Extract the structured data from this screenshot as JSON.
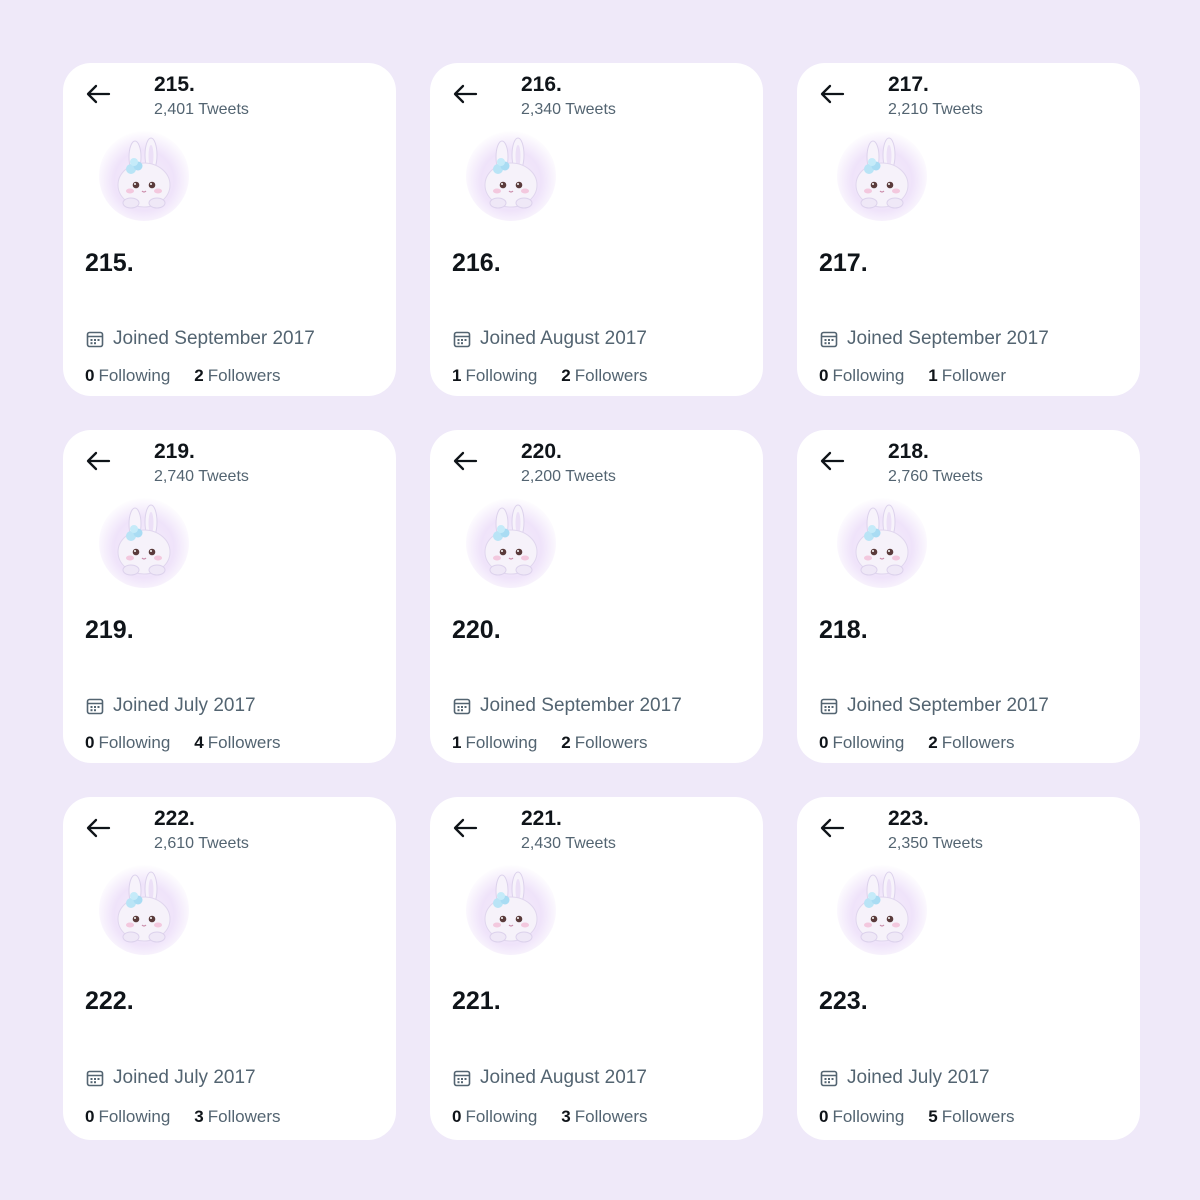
{
  "cards": [
    {
      "name": "215.",
      "tweets": "2,401 Tweets",
      "display_name": "215.",
      "joined": "Joined September 2017",
      "following_count": "0",
      "following_label": "Following",
      "followers_count": "2",
      "followers_label": "Followers"
    },
    {
      "name": "216.",
      "tweets": "2,340 Tweets",
      "display_name": "216.",
      "joined": "Joined August 2017",
      "following_count": "1",
      "following_label": "Following",
      "followers_count": "2",
      "followers_label": "Followers"
    },
    {
      "name": "217.",
      "tweets": "2,210 Tweets",
      "display_name": "217.",
      "joined": "Joined September 2017",
      "following_count": "0",
      "following_label": "Following",
      "followers_count": "1",
      "followers_label": "Follower"
    },
    {
      "name": "219.",
      "tweets": "2,740 Tweets",
      "display_name": "219.",
      "joined": "Joined July 2017",
      "following_count": "0",
      "following_label": "Following",
      "followers_count": "4",
      "followers_label": "Followers"
    },
    {
      "name": "220.",
      "tweets": "2,200 Tweets",
      "display_name": "220.",
      "joined": "Joined September 2017",
      "following_count": "1",
      "following_label": "Following",
      "followers_count": "2",
      "followers_label": "Followers"
    },
    {
      "name": "218.",
      "tweets": "2,760 Tweets",
      "display_name": "218.",
      "joined": "Joined September 2017",
      "following_count": "0",
      "following_label": "Following",
      "followers_count": "2",
      "followers_label": "Followers"
    },
    {
      "name": "222.",
      "tweets": "2,610 Tweets",
      "display_name": "222.",
      "joined": "Joined July 2017",
      "following_count": "0",
      "following_label": "Following",
      "followers_count": "3",
      "followers_label": "Followers"
    },
    {
      "name": "221.",
      "tweets": "2,430 Tweets",
      "display_name": "221.",
      "joined": "Joined August 2017",
      "following_count": "0",
      "following_label": "Following",
      "followers_count": "3",
      "followers_label": "Followers"
    },
    {
      "name": "223.",
      "tweets": "2,350 Tweets",
      "display_name": "223.",
      "joined": "Joined July 2017",
      "following_count": "0",
      "following_label": "Following",
      "followers_count": "5",
      "followers_label": "Followers"
    }
  ],
  "icons": {
    "back": "arrow-left-icon",
    "calendar": "calendar-icon",
    "avatar": "bunny-avatar"
  },
  "colors": {
    "background": "#efe9f9",
    "card": "#ffffff",
    "primary_text": "#0f1419",
    "secondary_text": "#536471"
  }
}
